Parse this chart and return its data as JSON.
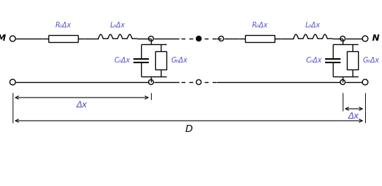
{
  "fig_width": 5.44,
  "fig_height": 2.65,
  "dpi": 100,
  "bg_color": "#ffffff",
  "line_color": "#000000",
  "text_color": "#5050c8",
  "label_color": "#000000",
  "lw": 1.0,
  "M_label": "M",
  "N_label": "N",
  "D_label": "D",
  "dx_label": "Δx",
  "R0_label": "R₀Δx",
  "L0_label": "L₀Δx",
  "C0_label": "C₀Δx",
  "G0_label": "G₀Δx",
  "xlim": [
    0,
    544
  ],
  "ylim": [
    0,
    265
  ]
}
